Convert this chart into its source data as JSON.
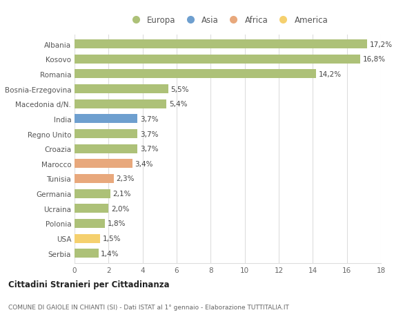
{
  "categories": [
    "Albania",
    "Kosovo",
    "Romania",
    "Bosnia-Erzegovina",
    "Macedonia d/N.",
    "India",
    "Regno Unito",
    "Croazia",
    "Marocco",
    "Tunisia",
    "Germania",
    "Ucraina",
    "Polonia",
    "USA",
    "Serbia"
  ],
  "values": [
    17.2,
    16.8,
    14.2,
    5.5,
    5.4,
    3.7,
    3.7,
    3.7,
    3.4,
    2.3,
    2.1,
    2.0,
    1.8,
    1.5,
    1.4
  ],
  "labels": [
    "17,2%",
    "16,8%",
    "14,2%",
    "5,5%",
    "5,4%",
    "3,7%",
    "3,7%",
    "3,7%",
    "3,4%",
    "2,3%",
    "2,1%",
    "2,0%",
    "1,8%",
    "1,5%",
    "1,4%"
  ],
  "continents": [
    "Europa",
    "Europa",
    "Europa",
    "Europa",
    "Europa",
    "Asia",
    "Europa",
    "Europa",
    "Africa",
    "Africa",
    "Europa",
    "Europa",
    "Europa",
    "America",
    "Europa"
  ],
  "colors": {
    "Europa": "#adc178",
    "Asia": "#6e9fcf",
    "Africa": "#e8a87c",
    "America": "#f5d06e"
  },
  "legend_order": [
    "Europa",
    "Asia",
    "Africa",
    "America"
  ],
  "title": "Cittadini Stranieri per Cittadinanza",
  "subtitle": "COMUNE DI GAIOLE IN CHIANTI (SI) - Dati ISTAT al 1° gennaio - Elaborazione TUTTITALIA.IT",
  "xlim": [
    0,
    18
  ],
  "xticks": [
    0,
    2,
    4,
    6,
    8,
    10,
    12,
    14,
    16,
    18
  ],
  "background_color": "#ffffff",
  "grid_color": "#dddddd",
  "bar_height": 0.6
}
